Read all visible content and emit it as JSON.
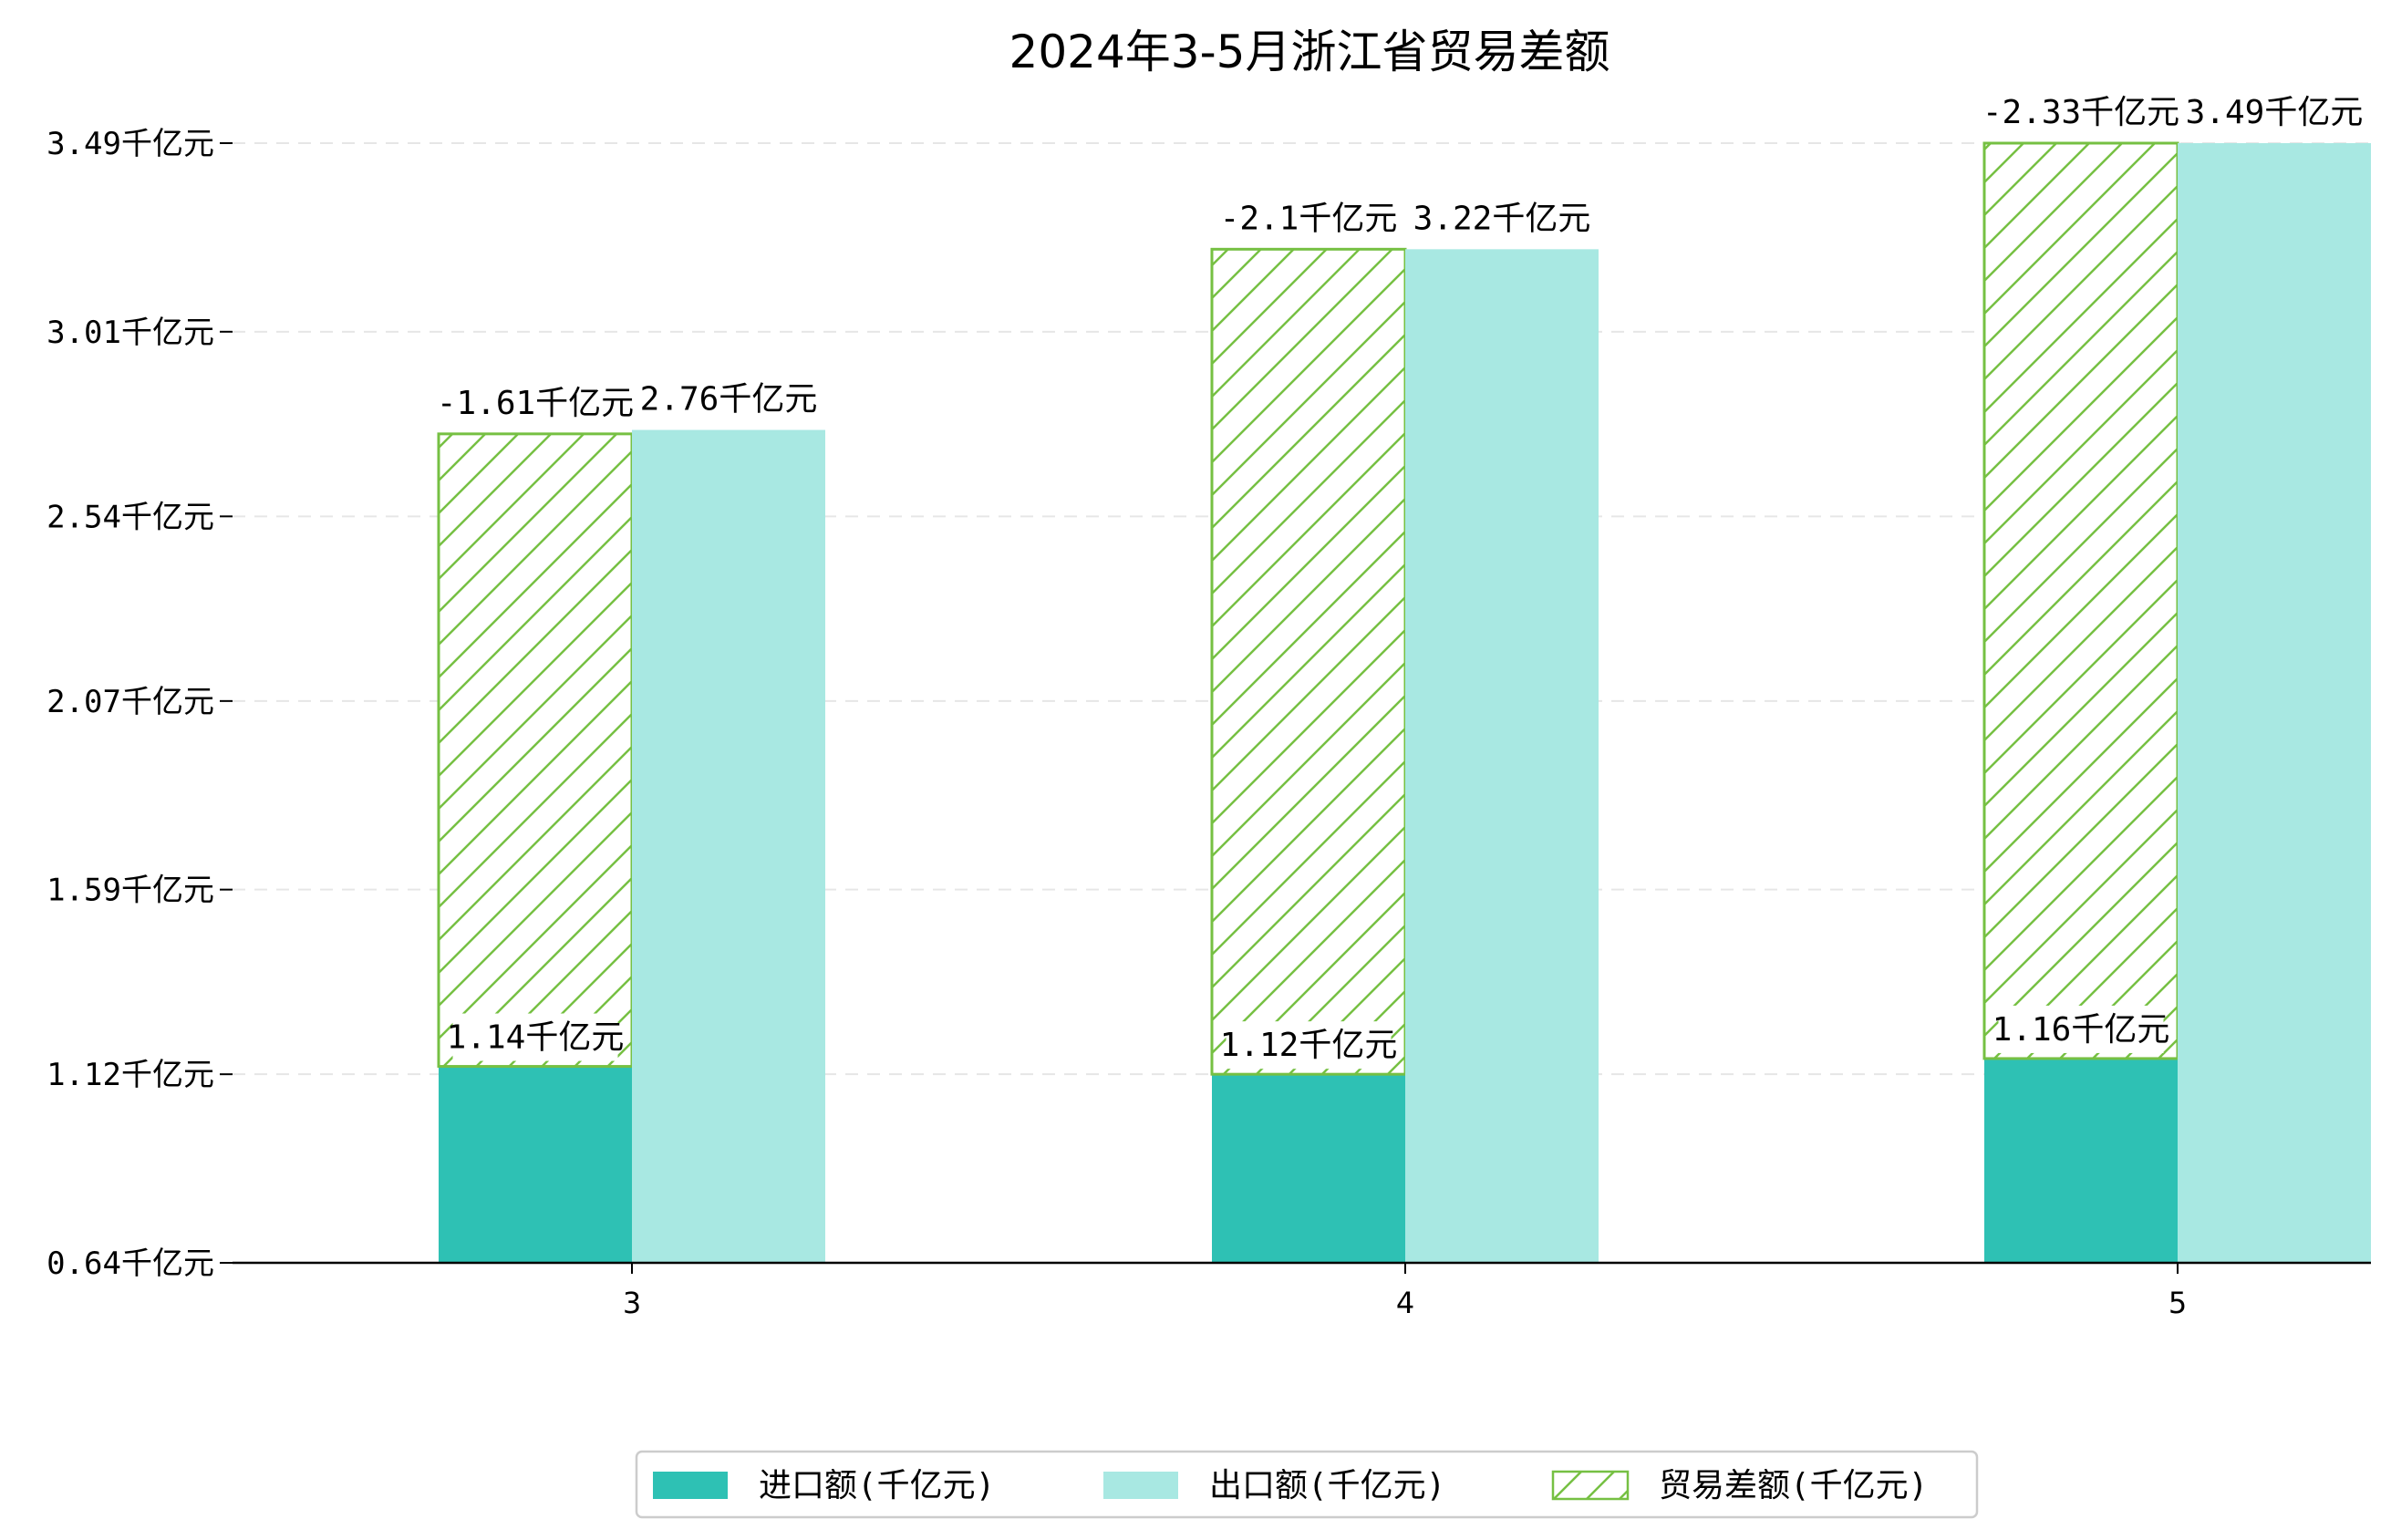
{
  "chart_data": {
    "type": "bar",
    "title": "2024年3-5月浙江省贸易差额",
    "xlabel": "",
    "ylabel": "",
    "categories": [
      "3",
      "4",
      "5"
    ],
    "ylim": [
      0.64,
      3.6
    ],
    "yticks": [
      "0.64千亿元",
      "1.12千亿元",
      "1.59千亿元",
      "2.07千亿元",
      "2.54千亿元",
      "3.01千亿元",
      "3.49千亿元"
    ],
    "ytick_values": [
      0.64,
      1.12,
      1.59,
      2.07,
      2.54,
      3.01,
      3.49
    ],
    "grid": "horizontal-dashed",
    "legend_position": "bottom",
    "series": [
      {
        "name": "进口额(千亿元)",
        "values": [
          1.14,
          1.12,
          1.16
        ],
        "labels": [
          "1.14千亿元",
          "1.12千亿元",
          "1.16千亿元"
        ],
        "color": "#2ec1b4"
      },
      {
        "name": "出口额(千亿元)",
        "values": [
          2.76,
          3.22,
          3.49
        ],
        "labels": [
          "2.76千亿元",
          "3.22千亿元",
          "3.49千亿元"
        ],
        "color": "#a8e8e2"
      },
      {
        "name": "贸易差额(千亿元)",
        "values": [
          -1.61,
          -2.1,
          -2.33
        ],
        "labels": [
          "-1.61千亿元",
          "-2.1千亿元",
          "-2.33千亿元"
        ],
        "color": "#76c043",
        "pattern": "hatch",
        "stacked_on": "进口额(千亿元)"
      }
    ]
  }
}
